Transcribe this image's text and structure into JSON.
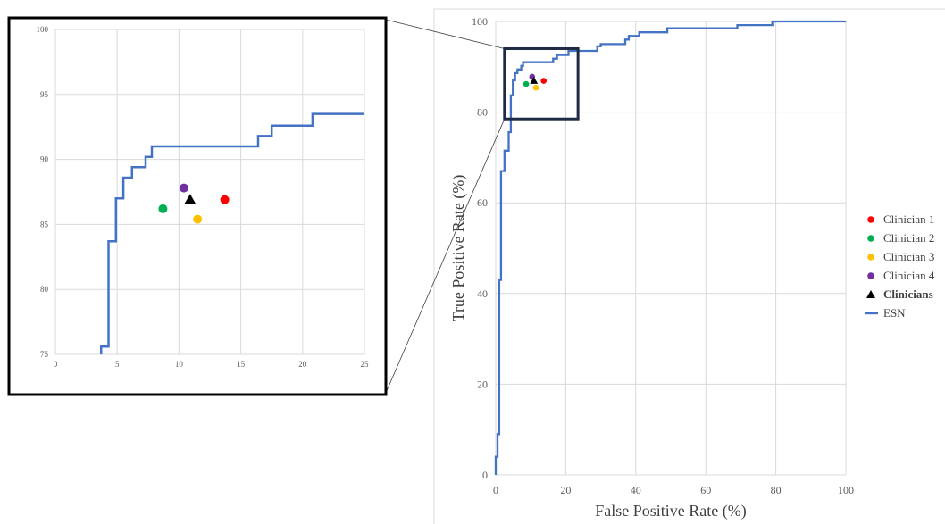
{
  "chart_data": [
    {
      "type": "line",
      "panel": "main",
      "xlabel": "False Positive Rate (%)",
      "ylabel": "True Positive Rate (%)",
      "xlim": [
        0,
        100
      ],
      "ylim": [
        0,
        100
      ],
      "x_ticks": [
        0,
        20,
        40,
        60,
        80,
        100
      ],
      "y_ticks": [
        0,
        20,
        40,
        60,
        80,
        100
      ],
      "grid": true,
      "legend_position": "right",
      "series": [
        {
          "name": "ESN",
          "kind": "step-line",
          "color": "#4472C4",
          "points": [
            [
              0,
              0
            ],
            [
              0,
              4
            ],
            [
              0.5,
              4
            ],
            [
              0.5,
              9
            ],
            [
              1,
              9
            ],
            [
              1,
              43
            ],
            [
              1.5,
              43
            ],
            [
              1.5,
              67
            ],
            [
              2.5,
              67
            ],
            [
              2.5,
              71.5
            ],
            [
              3.7,
              71.5
            ],
            [
              3.7,
              75.6
            ],
            [
              4.3,
              75.6
            ],
            [
              4.3,
              83.7
            ],
            [
              4.9,
              83.7
            ],
            [
              4.9,
              87
            ],
            [
              5.5,
              87
            ],
            [
              5.5,
              88.6
            ],
            [
              6.2,
              88.6
            ],
            [
              6.2,
              89.4
            ],
            [
              7.3,
              89.4
            ],
            [
              7.3,
              90.2
            ],
            [
              7.8,
              90.2
            ],
            [
              7.8,
              91
            ],
            [
              16.4,
              91
            ],
            [
              16.4,
              91.8
            ],
            [
              17.5,
              91.8
            ],
            [
              17.5,
              92.6
            ],
            [
              20.8,
              92.6
            ],
            [
              20.8,
              93.5
            ],
            [
              29,
              93.5
            ],
            [
              29,
              94.5
            ],
            [
              30,
              94.5
            ],
            [
              30,
              95
            ],
            [
              37,
              95
            ],
            [
              37,
              96
            ],
            [
              38,
              96
            ],
            [
              38,
              96.8
            ],
            [
              41,
              96.8
            ],
            [
              41,
              97.6
            ],
            [
              49,
              97.6
            ],
            [
              49,
              98.5
            ],
            [
              69,
              98.5
            ],
            [
              69,
              99.2
            ],
            [
              79,
              99.2
            ],
            [
              79,
              100
            ],
            [
              100,
              100
            ]
          ]
        },
        {
          "name": "Clinician 1",
          "kind": "point",
          "marker": "circle",
          "color": "#FF0000",
          "x": 13.7,
          "y": 86.9
        },
        {
          "name": "Clinician 2",
          "kind": "point",
          "marker": "circle",
          "color": "#00B050",
          "x": 8.7,
          "y": 86.2
        },
        {
          "name": "Clinician 3",
          "kind": "point",
          "marker": "circle",
          "color": "#FFC000",
          "x": 11.5,
          "y": 85.4
        },
        {
          "name": "Clinician 4",
          "kind": "point",
          "marker": "circle",
          "color": "#7030A0",
          "x": 10.4,
          "y": 87.8
        },
        {
          "name": "Clinicians",
          "kind": "point",
          "marker": "triangle",
          "color": "#000000",
          "x": 10.9,
          "y": 86.9
        }
      ],
      "highlight_box": {
        "x": [
          2.5,
          23.5
        ],
        "y": [
          78.5,
          94
        ]
      }
    },
    {
      "type": "line",
      "panel": "zoom-inset",
      "xlim": [
        0,
        25
      ],
      "ylim": [
        75,
        100
      ],
      "x_ticks": [
        0,
        5,
        10,
        15,
        20,
        25
      ],
      "y_ticks": [
        75,
        80,
        85,
        90,
        95,
        100
      ],
      "grid": true,
      "series_ref": "same as main panel"
    }
  ],
  "legend": {
    "items": [
      {
        "label": "Clinician 1",
        "marker": "circle",
        "color": "#FF0000"
      },
      {
        "label": "Clinician 2",
        "marker": "circle",
        "color": "#00B050"
      },
      {
        "label": "Clinician 3",
        "marker": "circle",
        "color": "#FFC000"
      },
      {
        "label": "Clinician 4",
        "marker": "circle",
        "color": "#7030A0"
      },
      {
        "label": "Clinicians",
        "marker": "triangle",
        "color": "#000000"
      },
      {
        "label": "ESN",
        "marker": "line",
        "color": "#4472C4"
      }
    ]
  },
  "colors": {
    "grid": "#D9D9D9",
    "frame": "#000000",
    "navy_box": "#1F2A44"
  }
}
